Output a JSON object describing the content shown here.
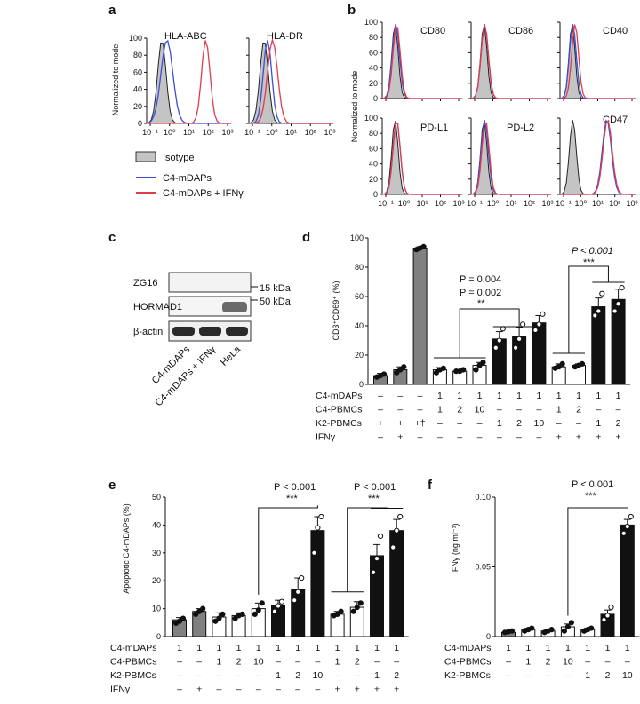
{
  "panel_labels": {
    "a": "a",
    "b": "b",
    "c": "c",
    "d": "d",
    "e": "e",
    "f": "f"
  },
  "panel_a": {
    "ylabel": "Normalized to mode",
    "y_ticks": [
      "0",
      "20",
      "40",
      "60",
      "80",
      "100"
    ],
    "x_ticks": [
      "10⁻¹",
      "10⁰",
      "10¹",
      "10²",
      "10³"
    ],
    "titles": [
      "HLA-ABC",
      "HLA-DR"
    ],
    "legend": [
      "Isotype",
      "C4-mDAPs",
      "C4-mDAPs + IFNγ"
    ],
    "colors": {
      "isotype": "#c4c4c4",
      "mdap": "#3b4fd8",
      "ifn": "#e23b4b"
    }
  },
  "panel_b": {
    "ylabel": "Normalized to mode",
    "y_ticks": [
      "0",
      "20",
      "40",
      "60",
      "80",
      "100"
    ],
    "x_ticks": [
      "10⁻¹",
      "10⁰",
      "10¹",
      "10²",
      "10³"
    ],
    "titles": [
      "CD80",
      "CD86",
      "CD40",
      "PD-L1",
      "PD-L2",
      "CD47"
    ]
  },
  "panel_c": {
    "rows": [
      "ZG16",
      "HORMAD1",
      "β-actin"
    ],
    "size_markers": [
      "15 kDa",
      "50 kDa"
    ],
    "lanes": [
      "C4-mDAPs",
      "C4-mDAPs + IFNγ",
      "HeLa"
    ]
  },
  "panel_d": {
    "ylabel": "CD3⁺CD69⁺ (%)",
    "p_labels": [
      "P = 0.004",
      "P = 0.002",
      "**",
      "P < 0.001",
      "***"
    ],
    "table_rows": [
      {
        "label": "C4-mDAPs",
        "cells": [
          "–",
          "–",
          "–",
          "1",
          "1",
          "1",
          "1",
          "1",
          "1",
          "1",
          "1",
          "1",
          "1"
        ]
      },
      {
        "label": "C4-PBMCs",
        "cells": [
          "–",
          "–",
          "–",
          "1",
          "2",
          "10",
          "–",
          "–",
          "–",
          "1",
          "2",
          "–",
          "–"
        ]
      },
      {
        "label": "K2-PBMCs",
        "cells": [
          "+",
          "+",
          "+†",
          "–",
          "–",
          "–",
          "1",
          "2",
          "10",
          "–",
          "–",
          "1",
          "2"
        ]
      },
      {
        "label": "IFNγ",
        "cells": [
          "–",
          "+",
          "–",
          "–",
          "–",
          "–",
          "–",
          "–",
          "–",
          "+",
          "+",
          "+",
          "+"
        ]
      }
    ]
  },
  "panel_e": {
    "ylabel": "Apoptotic C4-mDAPs (%)",
    "p_labels": [
      "P < 0.001",
      "***",
      "P < 0.001",
      "***"
    ],
    "table_rows": [
      {
        "label": "C4-mDAPs",
        "cells": [
          "1",
          "1",
          "1",
          "1",
          "1",
          "1",
          "1",
          "1",
          "1",
          "1",
          "1",
          "1"
        ]
      },
      {
        "label": "C4-PBMCs",
        "cells": [
          "–",
          "–",
          "1",
          "2",
          "10",
          "–",
          "–",
          "–",
          "1",
          "2",
          "–",
          "–"
        ]
      },
      {
        "label": "K2-PBMCs",
        "cells": [
          "–",
          "–",
          "–",
          "–",
          "–",
          "1",
          "2",
          "10",
          "–",
          "–",
          "1",
          "2"
        ]
      },
      {
        "label": "IFNγ",
        "cells": [
          "–",
          "+",
          "–",
          "–",
          "–",
          "–",
          "–",
          "–",
          "+",
          "+",
          "+",
          "+"
        ]
      }
    ]
  },
  "panel_f": {
    "ylabel": "IFNγ (ng ml⁻¹)",
    "p_labels": [
      "P < 0.001",
      "***"
    ],
    "table_rows": [
      {
        "label": "C4-mDAPs",
        "cells": [
          "1",
          "1",
          "1",
          "1",
          "1",
          "1",
          "1"
        ]
      },
      {
        "label": "C4-PBMCs",
        "cells": [
          "–",
          "1",
          "2",
          "10",
          "–",
          "–",
          "–"
        ]
      },
      {
        "label": "K2-PBMCs",
        "cells": [
          "–",
          "–",
          "–",
          "–",
          "1",
          "2",
          "10"
        ]
      }
    ]
  },
  "chart_data": [
    {
      "id": "d",
      "type": "bar",
      "ylabel": "CD3⁺CD69⁺ (%)",
      "ylim": [
        0,
        100
      ],
      "y_ticks": [
        0,
        20,
        40,
        60,
        80,
        100
      ],
      "values": [
        6,
        10,
        93,
        10,
        9,
        13,
        31,
        33,
        42,
        12,
        13,
        53,
        58
      ],
      "errors": [
        1.5,
        2,
        1,
        1.5,
        1,
        2,
        5,
        6,
        5,
        2,
        1,
        6,
        7
      ],
      "fills": [
        "gray",
        "gray",
        "gray",
        "white",
        "white",
        "white",
        "black",
        "black",
        "black",
        "white",
        "white",
        "black",
        "black"
      ],
      "points": [
        [
          5,
          6,
          7
        ],
        [
          8,
          10,
          12
        ],
        [
          92,
          93,
          94
        ],
        [
          8,
          10,
          11
        ],
        [
          9,
          9,
          10
        ],
        [
          10,
          13,
          15
        ],
        [
          25,
          30,
          38
        ],
        [
          25,
          31,
          41
        ],
        [
          37,
          41,
          48
        ],
        [
          11,
          12,
          14
        ],
        [
          12,
          13,
          14
        ],
        [
          47,
          50,
          62
        ],
        [
          50,
          55,
          66
        ]
      ]
    },
    {
      "id": "e",
      "type": "bar",
      "ylabel": "Apoptotic C4-mDAPs (%)",
      "ylim": [
        0,
        50
      ],
      "y_ticks": [
        0,
        10,
        20,
        30,
        40,
        50
      ],
      "values": [
        6,
        9,
        7,
        7.5,
        10,
        11,
        17,
        38,
        8,
        10.5,
        29,
        38
      ],
      "errors": [
        0.8,
        1,
        1.5,
        1,
        2,
        2,
        4,
        5,
        1,
        2,
        4,
        4
      ],
      "fills": [
        "gray",
        "gray",
        "white",
        "white",
        "white",
        "black",
        "black",
        "black",
        "white",
        "white",
        "black",
        "black"
      ],
      "points": [
        [
          4.8,
          5.5,
          6.5
        ],
        [
          8,
          9,
          10
        ],
        [
          5.5,
          6.5,
          8
        ],
        [
          6.5,
          7.5,
          8
        ],
        [
          8,
          9.5,
          12
        ],
        [
          9,
          11,
          12.5
        ],
        [
          13,
          16,
          21
        ],
        [
          30,
          39,
          43
        ],
        [
          7.5,
          8,
          9
        ],
        [
          9,
          10.5,
          12
        ],
        [
          23,
          28,
          36
        ],
        [
          32,
          38,
          43
        ]
      ]
    },
    {
      "id": "f",
      "type": "bar",
      "ylabel": "IFNγ (ng ml⁻¹)",
      "ylim": [
        0,
        0.1
      ],
      "y_ticks": [
        0,
        0.05,
        0.1
      ],
      "y_tick_labels": [
        "0",
        "0.05",
        "0.10"
      ],
      "values": [
        0.003,
        0.005,
        0.004,
        0.007,
        0.005,
        0.016,
        0.08
      ],
      "errors": [
        0.001,
        0.001,
        0.001,
        0.002,
        0.001,
        0.003,
        0.004
      ],
      "fills": [
        "gray",
        "white",
        "white",
        "white",
        "white",
        "black",
        "black"
      ],
      "points": [
        [
          0.003,
          0.0035,
          0.004
        ],
        [
          0.004,
          0.005,
          0.006
        ],
        [
          0.003,
          0.004,
          0.005
        ],
        [
          0.004,
          0.007,
          0.01
        ],
        [
          0.004,
          0.005,
          0.006
        ],
        [
          0.012,
          0.015,
          0.021
        ],
        [
          0.074,
          0.079,
          0.086
        ]
      ]
    }
  ]
}
